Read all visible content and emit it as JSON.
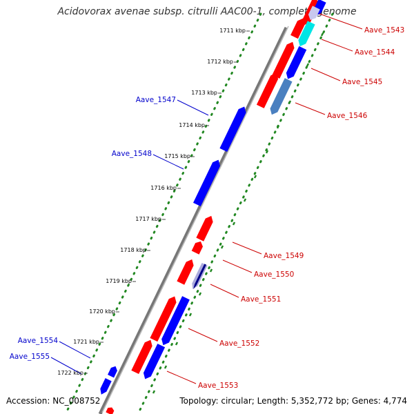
{
  "title": "Acidovorax avenae subsp. citrulli AAC00-1, complete genome",
  "footer": {
    "accession": "Accession: NC_008752",
    "summary": "Topology: circular; Length: 5,352,772 bp; Genes: 4,774"
  },
  "kbp_labels": [
    "1711 kbp",
    "1712 kbp",
    "1713 kbp",
    "1714 kbp",
    "1715 kbp",
    "1716 kbp",
    "1717 kbp",
    "1718 kbp",
    "1719 kbp",
    "1720 kbp",
    "1721 kbp",
    "1722 kbp"
  ],
  "genes": [
    {
      "name": "Aave_1543",
      "color": "#cc0000"
    },
    {
      "name": "Aave_1544",
      "color": "#cc0000"
    },
    {
      "name": "Aave_1545",
      "color": "#cc0000"
    },
    {
      "name": "Aave_1546",
      "color": "#cc0000"
    },
    {
      "name": "Aave_1547",
      "color": "#0000cc"
    },
    {
      "name": "Aave_1548",
      "color": "#0000cc"
    },
    {
      "name": "Aave_1549",
      "color": "#cc0000"
    },
    {
      "name": "Aave_1550",
      "color": "#cc0000"
    },
    {
      "name": "Aave_1551",
      "color": "#cc0000"
    },
    {
      "name": "Aave_1552",
      "color": "#cc0000"
    },
    {
      "name": "Aave_1553",
      "color": "#cc0000"
    },
    {
      "name": "Aave_1554",
      "color": "#0000cc"
    },
    {
      "name": "Aave_1555",
      "color": "#0000cc"
    }
  ],
  "colors": {
    "forward_cds": "#ff0000",
    "reverse_cds": "#0000ff",
    "backbone": "#888888",
    "gc_ticks": "#228822"
  }
}
